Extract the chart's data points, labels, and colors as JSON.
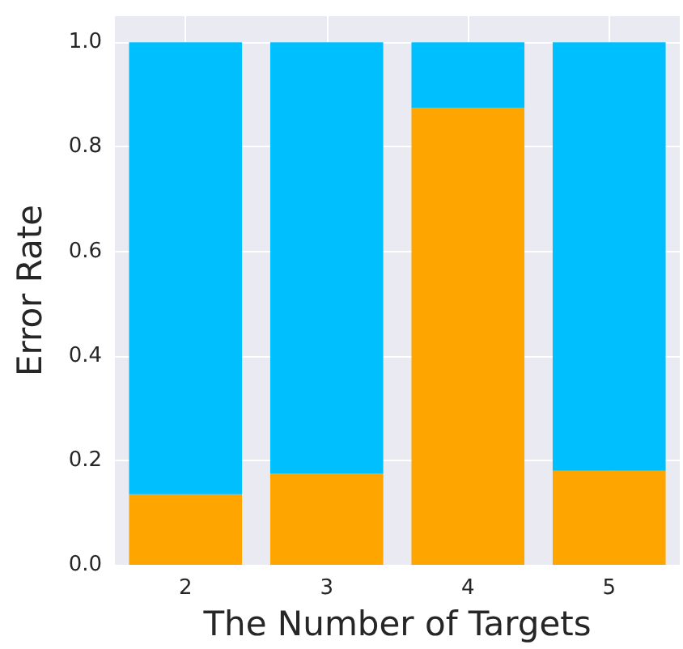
{
  "chart_data": {
    "type": "bar",
    "xlabel": "The Number of Targets",
    "ylabel": "Error Rate",
    "categories": [
      "2",
      "3",
      "4",
      "5"
    ],
    "stacked": true,
    "series": [
      {
        "color": "#ffa500",
        "values": [
          0.135,
          0.175,
          0.875,
          0.18
        ]
      },
      {
        "color": "#00bfff",
        "values": [
          0.865,
          0.825,
          0.125,
          0.82
        ]
      }
    ],
    "ylim": [
      0,
      1.05
    ],
    "yticks": [
      {
        "value": 0,
        "label": "0.0"
      },
      0.2,
      0.4,
      0.6,
      0.8,
      {
        "value": 1,
        "label": "1.0"
      }
    ],
    "grid": true
  }
}
